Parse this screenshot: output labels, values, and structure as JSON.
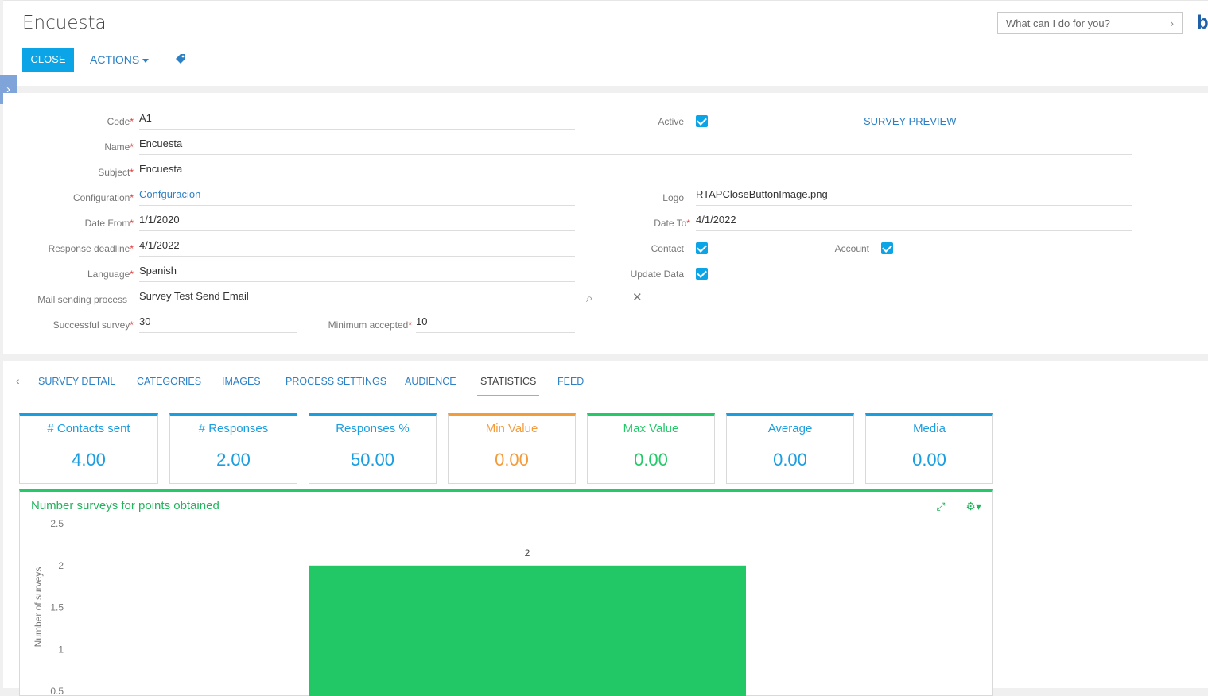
{
  "page": {
    "title": "Encuesta"
  },
  "search": {
    "placeholder": "What can I do for you?"
  },
  "brand": "b",
  "toolbar": {
    "close": "CLOSE",
    "actions": "ACTIONS"
  },
  "form": {
    "code": {
      "label": "Code",
      "value": "A1"
    },
    "name": {
      "label": "Name",
      "value": "Encuesta"
    },
    "subject": {
      "label": "Subject",
      "value": "Encuesta"
    },
    "configuration": {
      "label": "Configuration",
      "value": "Confguracion"
    },
    "date_from": {
      "label": "Date From",
      "value": "1/1/2020"
    },
    "response_deadline": {
      "label": "Response deadline",
      "value": "4/1/2022"
    },
    "language": {
      "label": "Language",
      "value": "Spanish"
    },
    "mail_process": {
      "label": "Mail sending process",
      "value": "Survey  Test Send Email"
    },
    "successful": {
      "label": "Successful survey",
      "value": "30"
    },
    "minimum": {
      "label": "Minimum accepted",
      "value": "10"
    },
    "active": {
      "label": "Active",
      "checked": true
    },
    "logo": {
      "label": "Logo",
      "value": "RTAPCloseButtonImage.png"
    },
    "date_to": {
      "label": "Date To",
      "value": "4/1/2022"
    },
    "contact": {
      "label": "Contact",
      "checked": true
    },
    "account": {
      "label": "Account",
      "checked": true
    },
    "update_data": {
      "label": "Update Data",
      "checked": true
    },
    "survey_preview": "SURVEY PREVIEW"
  },
  "tabs": [
    {
      "label": "SURVEY DETAIL"
    },
    {
      "label": "CATEGORIES"
    },
    {
      "label": "IMAGES"
    },
    {
      "label": "PROCESS SETTINGS"
    },
    {
      "label": "AUDIENCE"
    },
    {
      "label": "STATISTICS",
      "active": true
    },
    {
      "label": "FEED"
    }
  ],
  "stats": [
    {
      "title": "# Contacts sent",
      "value": "4.00",
      "color": "#1a9ee0"
    },
    {
      "title": "# Responses",
      "value": "2.00",
      "color": "#1a9ee0"
    },
    {
      "title": "Responses %",
      "value": "50.00",
      "color": "#1a9ee0"
    },
    {
      "title": "Min Value",
      "value": "0.00",
      "color": "#f39c3c"
    },
    {
      "title": "Max Value",
      "value": "0.00",
      "color": "#24c96a"
    },
    {
      "title": "Average",
      "value": "0.00",
      "color": "#1a9ee0"
    },
    {
      "title": "Media",
      "value": "0.00",
      "color": "#1a9ee0"
    }
  ],
  "chart_data": {
    "type": "bar",
    "title": "Number surveys for points obtained",
    "ylabel": "Number of surveys",
    "xlabel": "",
    "ylim": [
      0,
      2.5
    ],
    "yticks": [
      "2.5",
      "2",
      "1.5",
      "1",
      "0.5"
    ],
    "categories": [
      ""
    ],
    "values": [
      2
    ],
    "data_labels": [
      "2"
    ],
    "color": "#22c865"
  }
}
